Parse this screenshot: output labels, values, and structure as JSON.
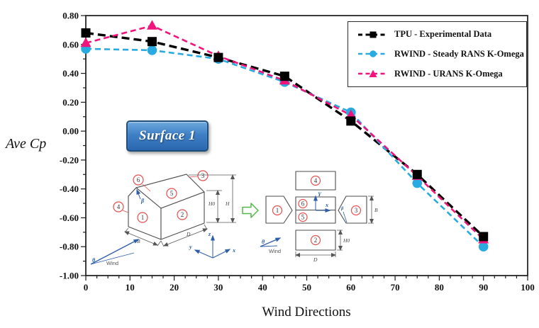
{
  "figure": {
    "surface_badge": "Surface 1"
  },
  "chart_data": {
    "type": "line",
    "title": "",
    "xlabel": "Wind Directions",
    "ylabel": "Ave Cp",
    "x": [
      0,
      15,
      30,
      45,
      60,
      75,
      90
    ],
    "series": [
      {
        "name": "TPU - Experimental Data",
        "color": "#000000",
        "marker": "square",
        "dash": "dashed",
        "values": [
          0.68,
          0.62,
          0.51,
          0.38,
          0.07,
          -0.3,
          -0.73
        ]
      },
      {
        "name": "RWIND - Steady RANS K-Omega",
        "color": "#29ABE2",
        "marker": "circle",
        "dash": "dashed",
        "values": [
          0.57,
          0.56,
          0.5,
          0.34,
          0.13,
          -0.36,
          -0.8
        ]
      },
      {
        "name": "RWIND - URANS K-Omega",
        "color": "#F0157C",
        "marker": "triangle",
        "dash": "dashed",
        "values": [
          0.61,
          0.73,
          0.52,
          0.35,
          0.11,
          -0.31,
          -0.75
        ]
      }
    ],
    "xlim": [
      0,
      100
    ],
    "ylim": [
      -1.0,
      0.8
    ],
    "x_major_step": 10,
    "x_minor_step": 2.5,
    "y_major_step": 0.2,
    "y_minor_step": 0.1,
    "x_tick_labels": [
      "0",
      "10",
      "20",
      "30",
      "40",
      "50",
      "60",
      "70",
      "80",
      "90",
      "100"
    ],
    "y_tick_labels": [
      "0.80",
      "0.60",
      "0.40",
      "0.20",
      "0.00",
      "-0.20",
      "-0.40",
      "-0.60",
      "-0.80",
      "-1.00"
    ],
    "grid": false,
    "legend_position": "top-right"
  },
  "diagram": {
    "labels": {
      "n1": "1",
      "n2": "2",
      "n3": "3",
      "n4": "4",
      "n5": "5",
      "n6": "6",
      "beta": "β",
      "theta": "θ",
      "wind": "Wind",
      "dim_b": "B",
      "dim_d": "D",
      "dim_h0": "H0",
      "dim_h": "H",
      "axis_x": "x",
      "axis_y": "y",
      "axis_z": "z",
      "axis_y_up": "Y"
    }
  }
}
